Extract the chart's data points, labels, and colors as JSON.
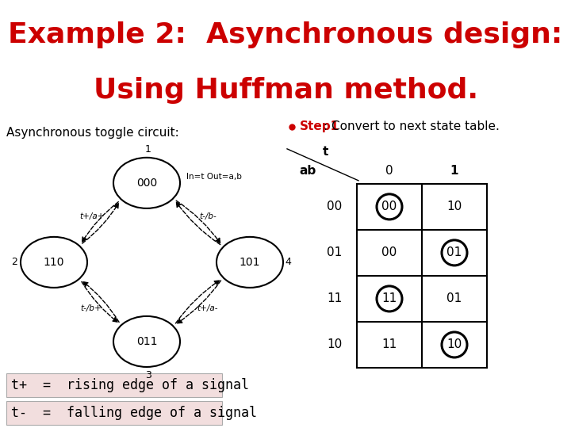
{
  "title_line1": "Example 2:  Asynchronous design:",
  "title_line2": "Using Huffman method.",
  "title_bg": "#FFFF00",
  "title_color": "#CC0000",
  "title_fontsize": 26,
  "subtitle": "Asynchronous toggle circuit:",
  "subtitle_fontsize": 11,
  "step_label_red": "Step1",
  "step_label_black": ": Convert to next state table.",
  "step_fontsize": 11,
  "bg_color": "#FFFFFF",
  "table_col0": [
    "00",
    "00",
    "11",
    "11"
  ],
  "table_col1": [
    "10",
    "01",
    "01",
    "10"
  ],
  "circled_cells": [
    [
      0,
      0
    ],
    [
      1,
      1
    ],
    [
      2,
      0
    ],
    [
      3,
      1
    ]
  ],
  "col_headers": [
    "0",
    "1"
  ],
  "row_headers": [
    "00",
    "01",
    "11",
    "10"
  ],
  "t_label": "t",
  "ab_label": "ab",
  "legend1_bg": "#F2DEDE",
  "legend2_bg": "#F2DEDE",
  "legend1_text": "t+  =  rising edge of a signal",
  "legend2_text": "t-  =  falling edge of a signal",
  "legend_fontsize": 12,
  "node_label1": "000",
  "node_label2": "110",
  "node_label3": "011",
  "node_label4": "101",
  "node_num1": "1",
  "node_num2": "2",
  "node_num3": "3",
  "node_num4": "4",
  "in_out_label": "In=t Out=a,b",
  "edge_label_12": "t+/a+",
  "edge_label_14": "t-/b-",
  "edge_label_23": "t-/b+",
  "edge_label_34": "t+/a-",
  "bullet_color": "#CC0000"
}
